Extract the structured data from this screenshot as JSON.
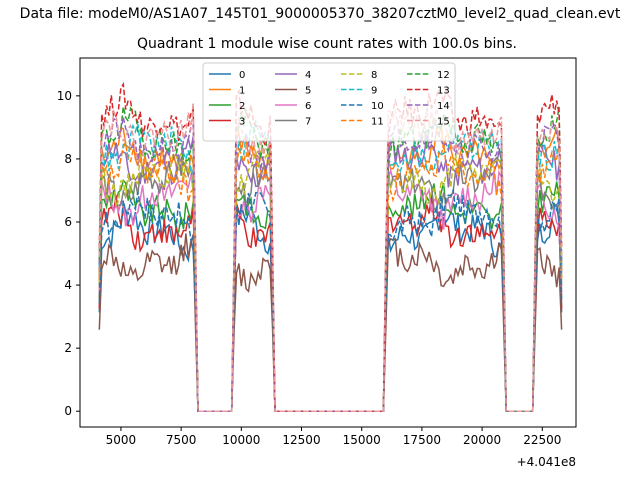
{
  "figure": {
    "suptitle": "Data file: modeM0/AS1A07_145T01_9000005370_38207cztM0_level2_quad_clean.evt",
    "title": "Quadrant 1 module wise count rates with 100.0s bins."
  },
  "chart_data": {
    "type": "line",
    "title": "Quadrant 1 module wise count rates with 100.0s bins.",
    "xlabel": "",
    "ylabel": "",
    "x_offset_label": "+4.041e8",
    "xlim": [
      3300,
      23900
    ],
    "ylim": [
      -0.5,
      11.2
    ],
    "xticks": [
      5000,
      7500,
      10000,
      12500,
      15000,
      17500,
      20000,
      22500
    ],
    "xtick_labels": [
      "5000",
      "7500",
      "10000",
      "12500",
      "15000",
      "17500",
      "20000",
      "22500"
    ],
    "yticks": [
      0,
      2,
      4,
      6,
      8,
      10
    ],
    "ytick_labels": [
      "0",
      "2",
      "4",
      "6",
      "8",
      "10"
    ],
    "grid": false,
    "legend_position": "top-center",
    "legend_columns": 4,
    "segments": [
      {
        "x_start": 4100,
        "x_end": 8100,
        "level": 1
      },
      {
        "x_start": 8200,
        "x_end": 9600,
        "level": 0
      },
      {
        "x_start": 9700,
        "x_end": 11300,
        "level": 1
      },
      {
        "x_start": 11400,
        "x_end": 15900,
        "level": 0
      },
      {
        "x_start": 16000,
        "x_end": 20900,
        "level": 1
      },
      {
        "x_start": 21000,
        "x_end": 22100,
        "level": 0
      },
      {
        "x_start": 22200,
        "x_end": 23300,
        "level": 1
      }
    ],
    "series": [
      {
        "name": "0",
        "mean": 5.7,
        "color": "#1f77b4",
        "dash": "solid"
      },
      {
        "name": "1",
        "mean": 8.1,
        "color": "#ff7f0e",
        "dash": "solid"
      },
      {
        "name": "2",
        "mean": 6.5,
        "color": "#2ca02c",
        "dash": "solid"
      },
      {
        "name": "3",
        "mean": 5.9,
        "color": "#d62728",
        "dash": "solid"
      },
      {
        "name": "4",
        "mean": 7.9,
        "color": "#9467bd",
        "dash": "solid"
      },
      {
        "name": "5",
        "mean": 4.7,
        "color": "#8c564b",
        "dash": "solid"
      },
      {
        "name": "6",
        "mean": 6.8,
        "color": "#e377c2",
        "dash": "solid"
      },
      {
        "name": "7",
        "mean": 7.2,
        "color": "#7f7f7f",
        "dash": "solid"
      },
      {
        "name": "8",
        "mean": 7.4,
        "color": "#bcbd22",
        "dash": "dashed"
      },
      {
        "name": "9",
        "mean": 8.3,
        "color": "#17becf",
        "dash": "dashed"
      },
      {
        "name": "10",
        "mean": 6.2,
        "color": "#1f77b4",
        "dash": "dashed"
      },
      {
        "name": "11",
        "mean": 7.6,
        "color": "#ff7f0e",
        "dash": "dashed"
      },
      {
        "name": "12",
        "mean": 8.7,
        "color": "#2ca02c",
        "dash": "dashed"
      },
      {
        "name": "13",
        "mean": 9.4,
        "color": "#d62728",
        "dash": "dashed"
      },
      {
        "name": "14",
        "mean": 8.5,
        "color": "#9467bd",
        "dash": "dashed"
      },
      {
        "name": "15",
        "mean": 8.9,
        "color": "#e99a9a",
        "dash": "dashed"
      }
    ]
  }
}
